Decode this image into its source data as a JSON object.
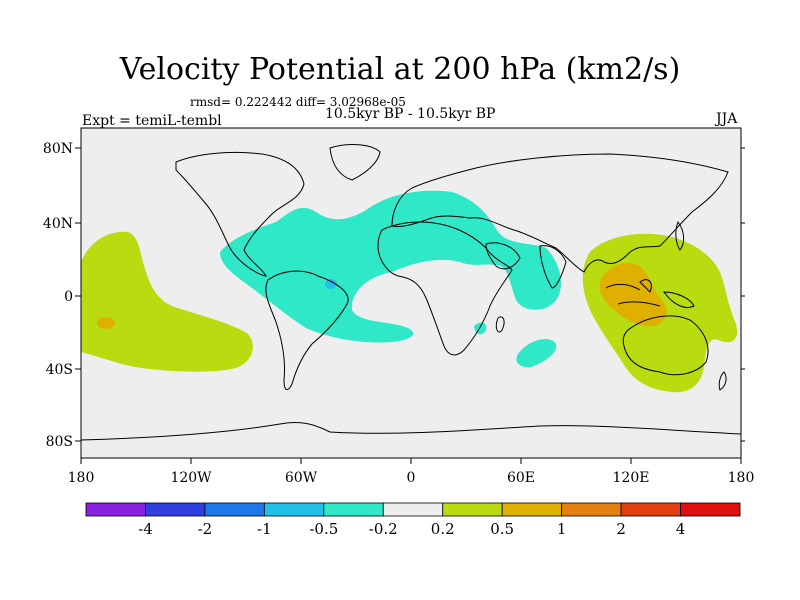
{
  "title": "Velocity Potential at 200 hPa (km2/s)",
  "stats": "rmsd= 0.222442  diff= 3.02968e-05",
  "left_label": "Expt = temiL-tembl",
  "center_label": "10.5kyr BP - 10.5kyr BP",
  "right_label": "JJA",
  "lat_ticks": [
    "80N",
    "40N",
    "0",
    "40S",
    "80S"
  ],
  "lon_ticks": [
    "180",
    "120W",
    "60W",
    "0",
    "60E",
    "120E",
    "180"
  ],
  "colorbar": {
    "labels": [
      "-4",
      "-2",
      "-1",
      "-0.5",
      "-0.2",
      "0.2",
      "0.5",
      "1",
      "2",
      "4"
    ],
    "colors": [
      "#8a20e0",
      "#3040e0",
      "#1e78e8",
      "#20c0e8",
      "#2ee8c8",
      "#eeeeee",
      "#b8dc10",
      "#e0b000",
      "#e48010",
      "#e04010",
      "#e01010"
    ]
  },
  "fill_colors": {
    "background": "#eeeeee",
    "neg_weak": "#2ee8c8",
    "neg_mid": "#20c0e8",
    "pos_weak": "#b8dc10",
    "pos_mid": "#e0b000"
  }
}
